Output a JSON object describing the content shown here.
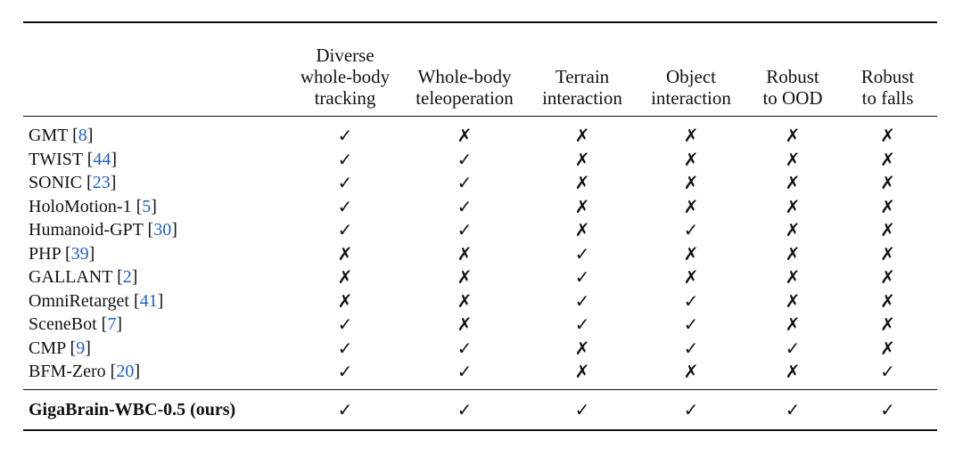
{
  "columns": [
    {
      "lines": [
        "Diverse",
        "whole-body",
        "tracking"
      ]
    },
    {
      "lines": [
        "Whole-body",
        "teleoperation"
      ]
    },
    {
      "lines": [
        "Terrain",
        "interaction"
      ]
    },
    {
      "lines": [
        "Object",
        "interaction"
      ]
    },
    {
      "lines": [
        "Robust",
        "to OOD"
      ]
    },
    {
      "lines": [
        "Robust",
        "to falls"
      ]
    }
  ],
  "marks": {
    "yes": "✓",
    "no": "✗"
  },
  "rows": [
    {
      "name": "GMT",
      "ref": "8",
      "values": [
        "✓",
        "✗",
        "✗",
        "✗",
        "✗",
        "✗"
      ]
    },
    {
      "name": "TWIST",
      "ref": "44",
      "values": [
        "✓",
        "✓",
        "✗",
        "✗",
        "✗",
        "✗"
      ]
    },
    {
      "name": "SONIC",
      "ref": "23",
      "values": [
        "✓",
        "✓",
        "✗",
        "✗",
        "✗",
        "✗"
      ]
    },
    {
      "name": "HoloMotion-1",
      "ref": "5",
      "values": [
        "✓",
        "✓",
        "✗",
        "✗",
        "✗",
        "✗"
      ]
    },
    {
      "name": "Humanoid-GPT",
      "ref": "30",
      "values": [
        "✓",
        "✓",
        "✗",
        "✓",
        "✗",
        "✗"
      ]
    },
    {
      "name": "PHP",
      "ref": "39",
      "values": [
        "✗",
        "✗",
        "✓",
        "✗",
        "✗",
        "✗"
      ]
    },
    {
      "name": "GALLANT",
      "ref": "2",
      "values": [
        "✗",
        "✗",
        "✓",
        "✗",
        "✗",
        "✗"
      ]
    },
    {
      "name": "OmniRetarget",
      "ref": "41",
      "values": [
        "✗",
        "✗",
        "✓",
        "✓",
        "✗",
        "✗"
      ]
    },
    {
      "name": "SceneBot",
      "ref": "7",
      "values": [
        "✓",
        "✗",
        "✓",
        "✓",
        "✗",
        "✗"
      ]
    },
    {
      "name": "CMP",
      "ref": "9",
      "values": [
        "✓",
        "✓",
        "✗",
        "✓",
        "✓",
        "✗"
      ]
    },
    {
      "name": "BFM-Zero",
      "ref": "20",
      "values": [
        "✓",
        "✓",
        "✗",
        "✗",
        "✗",
        "✓"
      ]
    }
  ],
  "ours": {
    "name": "GigaBrain-WBC-0.5 (ours)",
    "values": [
      "✓",
      "✓",
      "✓",
      "✓",
      "✓",
      "✓"
    ]
  }
}
